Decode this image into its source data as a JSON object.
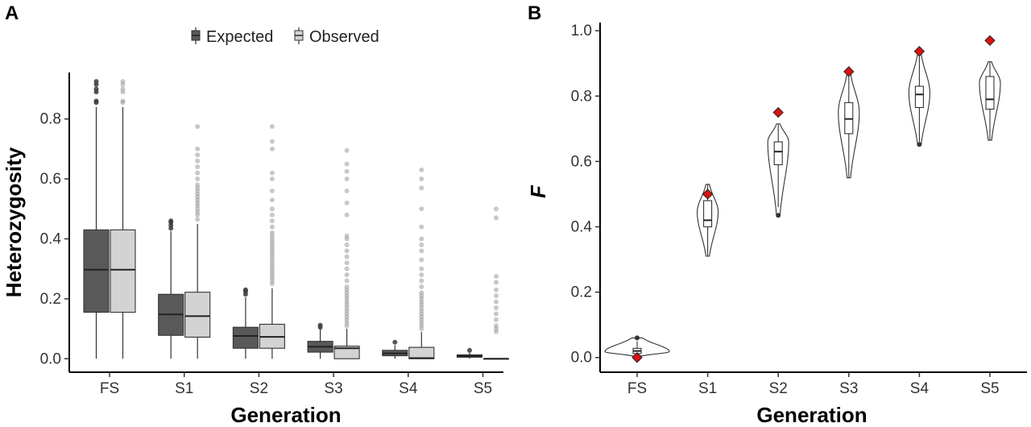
{
  "chart_data": [
    {
      "panel": "A",
      "type": "boxplot",
      "xlabel": "Generation",
      "ylabel": "Heterozygosity",
      "categories": [
        "FS",
        "S1",
        "S2",
        "S3",
        "S4",
        "S5"
      ],
      "ylim": [
        -0.045,
        0.955
      ],
      "yticks": [
        0.0,
        0.2,
        0.4,
        0.6,
        0.8
      ],
      "ytick_labels": [
        "0.0",
        "0.2",
        "0.4",
        "0.6",
        "0.8"
      ],
      "grid": false,
      "legend": {
        "placement": "top-center"
      },
      "series": [
        {
          "name": "Expected",
          "color": "#595959",
          "boxes": [
            {
              "low": 0.0,
              "q1": 0.155,
              "median": 0.297,
              "q3": 0.43,
              "high": 0.84,
              "outliers": [
                0.855,
                0.86,
                0.89,
                0.9,
                0.915,
                0.925
              ]
            },
            {
              "low": 0.0,
              "q1": 0.078,
              "median": 0.148,
              "q3": 0.215,
              "high": 0.425,
              "outliers": [
                0.435,
                0.445,
                0.455,
                0.46
              ]
            },
            {
              "low": 0.0,
              "q1": 0.035,
              "median": 0.076,
              "q3": 0.105,
              "high": 0.205,
              "outliers": [
                0.215,
                0.225,
                0.23
              ]
            },
            {
              "low": 0.0,
              "q1": 0.022,
              "median": 0.04,
              "q3": 0.058,
              "high": 0.1,
              "outliers": [
                0.105,
                0.112
              ]
            },
            {
              "low": 0.0,
              "q1": 0.01,
              "median": 0.018,
              "q3": 0.028,
              "high": 0.045,
              "outliers": [
                0.055
              ]
            },
            {
              "low": 0.0,
              "q1": 0.005,
              "median": 0.009,
              "q3": 0.013,
              "high": 0.02,
              "outliers": [
                0.028
              ]
            }
          ]
        },
        {
          "name": "Observed",
          "color": "#d3d3d3",
          "boxes": [
            {
              "low": 0.0,
              "q1": 0.155,
              "median": 0.297,
              "q3": 0.43,
              "high": 0.84,
              "outliers": [
                0.855,
                0.86,
                0.89,
                0.9,
                0.915,
                0.925
              ]
            },
            {
              "low": 0.0,
              "q1": 0.072,
              "median": 0.142,
              "q3": 0.222,
              "high": 0.45,
              "outliers": [
                0.465,
                0.48,
                0.49,
                0.5,
                0.51,
                0.52,
                0.53,
                0.54,
                0.55,
                0.56,
                0.57,
                0.58,
                0.6,
                0.62,
                0.64,
                0.66,
                0.68,
                0.7,
                0.775
              ]
            },
            {
              "low": 0.0,
              "q1": 0.035,
              "median": 0.073,
              "q3": 0.115,
              "high": 0.235,
              "outliers": [
                0.25,
                0.26,
                0.27,
                0.28,
                0.29,
                0.3,
                0.31,
                0.32,
                0.33,
                0.34,
                0.35,
                0.36,
                0.37,
                0.38,
                0.39,
                0.4,
                0.41,
                0.42,
                0.44,
                0.46,
                0.48,
                0.5,
                0.53,
                0.56,
                0.6,
                0.62,
                0.7,
                0.725,
                0.775
              ]
            },
            {
              "low": 0.0,
              "q1": 0.0,
              "median": 0.035,
              "q3": 0.042,
              "high": 0.1,
              "outliers": [
                0.11,
                0.12,
                0.13,
                0.14,
                0.15,
                0.16,
                0.17,
                0.18,
                0.19,
                0.2,
                0.21,
                0.22,
                0.23,
                0.24,
                0.26,
                0.28,
                0.3,
                0.32,
                0.34,
                0.36,
                0.38,
                0.4,
                0.41,
                0.48,
                0.52,
                0.56,
                0.6,
                0.625,
                0.65,
                0.695
              ]
            },
            {
              "low": 0.0,
              "q1": 0.0,
              "median": 0.002,
              "q3": 0.038,
              "high": 0.09,
              "outliers": [
                0.1,
                0.11,
                0.12,
                0.13,
                0.14,
                0.15,
                0.16,
                0.17,
                0.18,
                0.19,
                0.2,
                0.21,
                0.22,
                0.24,
                0.26,
                0.28,
                0.3,
                0.33,
                0.36,
                0.38,
                0.4,
                0.44,
                0.5,
                0.57,
                0.6,
                0.63
              ]
            },
            {
              "low": 0.0,
              "q1": 0.0,
              "median": 0.0,
              "q3": 0.0,
              "high": 0.0,
              "outliers": [
                0.09,
                0.1,
                0.11,
                0.13,
                0.15,
                0.17,
                0.19,
                0.21,
                0.23,
                0.255,
                0.275,
                0.47,
                0.5
              ]
            }
          ]
        }
      ]
    },
    {
      "panel": "B",
      "type": "violin",
      "xlabel": "Generation",
      "ylabel": "F",
      "categories": [
        "FS",
        "S1",
        "S2",
        "S3",
        "S4",
        "S5"
      ],
      "ylim": [
        -0.045,
        1.025
      ],
      "yticks": [
        0.0,
        0.2,
        0.4,
        0.6,
        0.8,
        1.0
      ],
      "ytick_labels": [
        "0.0",
        "0.2",
        "0.4",
        "0.6",
        "0.8",
        "1.0"
      ],
      "grid": false,
      "marker_color": "#dd1111",
      "groups": [
        {
          "violin_min": 0.005,
          "violin_max": 0.06,
          "widest_at": 0.018,
          "q1": 0.012,
          "median": 0.02,
          "q3": 0.028,
          "low": 0.005,
          "high": 0.05,
          "outliers": [
            0.06
          ],
          "marker": 0.0
        },
        {
          "violin_min": 0.31,
          "violin_max": 0.53,
          "widest_at": 0.445,
          "q1": 0.4,
          "median": 0.42,
          "q3": 0.48,
          "low": 0.31,
          "high": 0.53,
          "outliers": [],
          "marker": 0.5
        },
        {
          "violin_min": 0.435,
          "violin_max": 0.715,
          "widest_at": 0.66,
          "q1": 0.59,
          "median": 0.63,
          "q3": 0.66,
          "low": 0.46,
          "high": 0.715,
          "outliers": [
            0.435
          ],
          "marker": 0.75
        },
        {
          "violin_min": 0.55,
          "violin_max": 0.87,
          "widest_at": 0.75,
          "q1": 0.685,
          "median": 0.73,
          "q3": 0.78,
          "low": 0.55,
          "high": 0.87,
          "outliers": [],
          "marker": 0.875
        },
        {
          "violin_min": 0.65,
          "violin_max": 0.93,
          "widest_at": 0.81,
          "q1": 0.765,
          "median": 0.805,
          "q3": 0.83,
          "low": 0.66,
          "high": 0.93,
          "outliers": [
            0.652
          ],
          "marker": 0.937
        },
        {
          "violin_min": 0.665,
          "violin_max": 0.905,
          "widest_at": 0.84,
          "q1": 0.76,
          "median": 0.79,
          "q3": 0.86,
          "low": 0.665,
          "high": 0.905,
          "outliers": [],
          "marker": 0.97
        }
      ]
    }
  ],
  "panel_labels": [
    "A",
    "B"
  ]
}
